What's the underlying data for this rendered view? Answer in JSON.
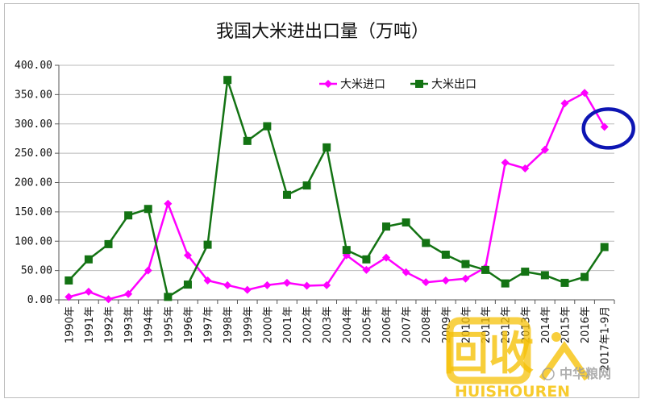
{
  "chart_data": {
    "type": "line",
    "title": "我国大米进出口量（万吨）",
    "categories": [
      "1990年",
      "1991年",
      "1992年",
      "1993年",
      "1994年",
      "1995年",
      "1996年",
      "1997年",
      "1998年",
      "1999年",
      "2000年",
      "2001年",
      "2002年",
      "2003年",
      "2004年",
      "2005年",
      "2006年",
      "2007年",
      "2008年",
      "2009年",
      "2010年",
      "2011年",
      "2012年",
      "2013年",
      "2014年",
      "2015年",
      "2016年",
      "2017年1-9月"
    ],
    "ylim": [
      0,
      400
    ],
    "yticks": [
      "0.00",
      "50.00",
      "100.00",
      "150.00",
      "200.00",
      "250.00",
      "300.00",
      "350.00",
      "400.00"
    ],
    "grid": true,
    "legend_position": "top-right",
    "series": [
      {
        "name": "大米进口",
        "color": "#ff00ff",
        "marker": "diamond",
        "values": [
          5,
          14,
          1,
          10,
          50,
          164,
          76,
          33,
          25,
          17,
          25,
          29,
          24,
          25,
          76,
          51,
          72,
          47,
          30,
          33,
          36,
          55,
          234,
          224,
          256,
          335,
          353,
          295
        ]
      },
      {
        "name": "大米出口",
        "color": "#137313",
        "marker": "square",
        "values": [
          33,
          69,
          95,
          144,
          155,
          5,
          26,
          94,
          375,
          271,
          296,
          179,
          195,
          260,
          85,
          69,
          125,
          132,
          97,
          77,
          61,
          51,
          28,
          48,
          42,
          29,
          39,
          90
        ]
      }
    ],
    "annotation": {
      "type": "ellipse",
      "color": "#0d15b3",
      "target_index": 27
    }
  },
  "watermark": {
    "brand": "回收",
    "pinyin": "HUISHOUREN",
    "site": "中华粮网",
    "accent_color": "#f6c20a"
  }
}
